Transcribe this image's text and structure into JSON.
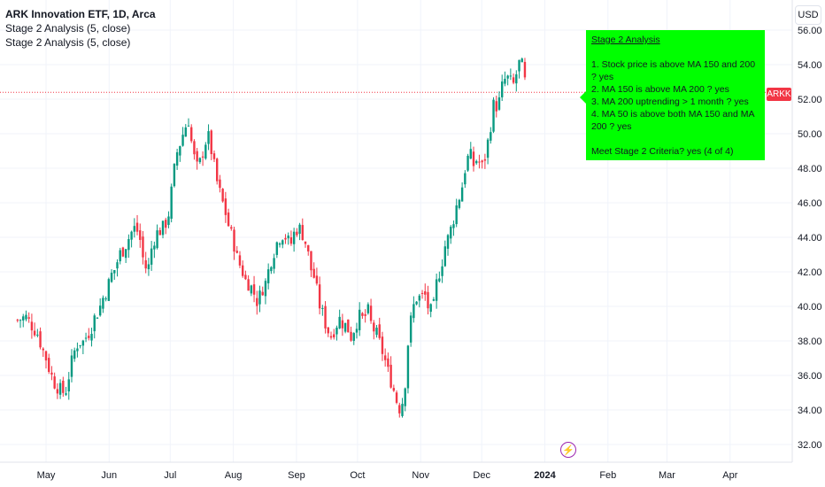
{
  "legend": {
    "title": "ARK Innovation ETF, 1D, Arca",
    "indicators": [
      "Stage 2 Analysis (5, close)",
      "Stage 2 Analysis (5, close)"
    ]
  },
  "currency": "USD",
  "price_tag": {
    "label": "ARKK",
    "value": 52.4,
    "color": "#f23645"
  },
  "stage_box": {
    "heading": "Stage 2 Analysis",
    "lines": [
      "1. Stock price is above MA 150 and 200 ? yes",
      "2. MA 150 is above MA 200 ? yes",
      "3. MA 200 uptrending > 1 month ? yes",
      "4. MA 50 is above both MA 150 and MA 200 ? yes"
    ],
    "verdict": "Meet Stage 2 Criteria? yes (4 of 4)",
    "bg_color": "#00ff00"
  },
  "event_icon": "lightning-icon",
  "chart_data": {
    "type": "candlestick",
    "ylim": [
      31,
      57
    ],
    "grid": true,
    "colors": {
      "up": "#089981",
      "down": "#f23645"
    },
    "y_ticks": [
      "32.00",
      "34.00",
      "36.00",
      "38.00",
      "40.00",
      "42.00",
      "44.00",
      "46.00",
      "48.00",
      "50.00",
      "52.00",
      "54.00",
      "56.00"
    ],
    "x_ticks": [
      {
        "label": "May",
        "day": 0
      },
      {
        "label": "Jun",
        "day": 31
      },
      {
        "label": "Jul",
        "day": 61
      },
      {
        "label": "Aug",
        "day": 92
      },
      {
        "label": "Sep",
        "day": 123
      },
      {
        "label": "Oct",
        "day": 153
      },
      {
        "label": "Nov",
        "day": 184
      },
      {
        "label": "Dec",
        "day": 214
      },
      {
        "label": "2024",
        "day": 245
      },
      {
        "label": "Feb",
        "day": 276
      },
      {
        "label": "Mar",
        "day": 305
      },
      {
        "label": "Apr",
        "day": 336
      }
    ],
    "close_path": [
      [
        -14,
        39.2
      ],
      [
        -10,
        39.4
      ],
      [
        -7,
        38.9
      ],
      [
        -4,
        38.4
      ],
      [
        -2,
        37.6
      ],
      [
        0,
        37.0
      ],
      [
        2,
        36.2
      ],
      [
        4,
        35.6
      ],
      [
        6,
        35.3
      ],
      [
        8,
        35.0
      ],
      [
        10,
        35.2
      ],
      [
        12,
        36.5
      ],
      [
        14,
        37.4
      ],
      [
        16,
        38.0
      ],
      [
        18,
        37.9
      ],
      [
        20,
        38.3
      ],
      [
        22,
        38.7
      ],
      [
        24,
        39.4
      ],
      [
        26,
        39.8
      ],
      [
        28,
        40.5
      ],
      [
        30,
        41.0
      ],
      [
        32,
        41.8
      ],
      [
        34,
        42.2
      ],
      [
        36,
        43.0
      ],
      [
        38,
        43.3
      ],
      [
        40,
        43.8
      ],
      [
        42,
        44.3
      ],
      [
        44,
        44.6
      ],
      [
        46,
        44.0
      ],
      [
        48,
        42.5
      ],
      [
        50,
        42.0
      ],
      [
        52,
        43.5
      ],
      [
        54,
        44.2
      ],
      [
        56,
        44.4
      ],
      [
        58,
        44.6
      ],
      [
        60,
        45.2
      ],
      [
        62,
        47.0
      ],
      [
        64,
        48.8
      ],
      [
        66,
        49.5
      ],
      [
        68,
        50.3
      ],
      [
        70,
        50.8
      ],
      [
        72,
        49.0
      ],
      [
        74,
        48.0
      ],
      [
        76,
        48.4
      ],
      [
        78,
        49.5
      ],
      [
        80,
        49.8
      ],
      [
        82,
        48.5
      ],
      [
        84,
        47.2
      ],
      [
        86,
        46.3
      ],
      [
        88,
        45.5
      ],
      [
        90,
        44.5
      ],
      [
        92,
        43.8
      ],
      [
        94,
        42.7
      ],
      [
        96,
        42.2
      ],
      [
        98,
        41.5
      ],
      [
        100,
        41.3
      ],
      [
        102,
        40.8
      ],
      [
        104,
        40.2
      ],
      [
        106,
        41.0
      ],
      [
        108,
        41.4
      ],
      [
        110,
        42.5
      ],
      [
        112,
        43.2
      ],
      [
        114,
        43.9
      ],
      [
        116,
        44.2
      ],
      [
        118,
        44.0
      ],
      [
        120,
        43.5
      ],
      [
        122,
        44.3
      ],
      [
        124,
        44.6
      ],
      [
        126,
        44.2
      ],
      [
        128,
        43.5
      ],
      [
        130,
        42.2
      ],
      [
        132,
        41.6
      ],
      [
        134,
        40.2
      ],
      [
        136,
        39.5
      ],
      [
        138,
        38.7
      ],
      [
        140,
        38.3
      ],
      [
        142,
        38.8
      ],
      [
        144,
        39.3
      ],
      [
        146,
        39.0
      ],
      [
        148,
        38.8
      ],
      [
        150,
        38.2
      ],
      [
        152,
        39.0
      ],
      [
        154,
        39.4
      ],
      [
        156,
        39.2
      ],
      [
        158,
        39.8
      ],
      [
        160,
        38.8
      ],
      [
        162,
        38.5
      ],
      [
        164,
        37.8
      ],
      [
        166,
        37.1
      ],
      [
        168,
        36.2
      ],
      [
        170,
        35.5
      ],
      [
        172,
        34.6
      ],
      [
        174,
        34.0
      ],
      [
        176,
        35.0
      ],
      [
        178,
        38.2
      ],
      [
        180,
        39.8
      ],
      [
        182,
        40.5
      ],
      [
        184,
        40.5
      ],
      [
        186,
        40.7
      ],
      [
        188,
        39.8
      ],
      [
        190,
        39.6
      ],
      [
        192,
        41.5
      ],
      [
        194,
        42.3
      ],
      [
        196,
        43.5
      ],
      [
        198,
        44.1
      ],
      [
        200,
        45.0
      ],
      [
        202,
        46.0
      ],
      [
        204,
        46.7
      ],
      [
        206,
        48.1
      ],
      [
        208,
        48.9
      ],
      [
        210,
        48.2
      ],
      [
        212,
        48.6
      ],
      [
        214,
        48.0
      ],
      [
        216,
        48.8
      ],
      [
        218,
        50.2
      ],
      [
        220,
        51.8
      ],
      [
        222,
        51.5
      ],
      [
        224,
        52.7
      ],
      [
        226,
        53.3
      ],
      [
        228,
        53.0
      ],
      [
        230,
        52.8
      ],
      [
        232,
        54.1
      ],
      [
        234,
        53.9
      ],
      [
        236,
        52.4
      ]
    ]
  }
}
